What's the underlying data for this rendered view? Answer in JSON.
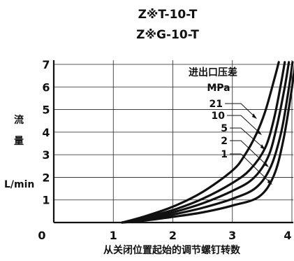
{
  "chart_data": {
    "type": "line",
    "title": "Z※T-10-T",
    "subtitle": "Z※G-10-T",
    "xlabel": "从关闭位置起始的调节螺钉转数",
    "ylabel_chars": [
      "流",
      "量"
    ],
    "ylabel_unit": "L/min",
    "xlim": [
      0,
      4
    ],
    "ylim": [
      0,
      7
    ],
    "x_ticks": [
      0,
      1,
      2,
      3,
      4
    ],
    "y_ticks": [
      1,
      2,
      3,
      4,
      5,
      6,
      7
    ],
    "x_tick_labels": [
      "0",
      "1",
      "2",
      "3",
      "4"
    ],
    "y_tick_labels": [
      "1",
      "2",
      "3",
      "4",
      "5",
      "6",
      "7"
    ],
    "grid": true,
    "legend_title": "进出口压差",
    "legend_unit": "MPa",
    "series": [
      {
        "name": "21",
        "points": [
          [
            1.15,
            0
          ],
          [
            1.5,
            0.25
          ],
          [
            2,
            0.7
          ],
          [
            2.5,
            1.35
          ],
          [
            3,
            2.3
          ],
          [
            3.2,
            2.95
          ],
          [
            3.4,
            3.9
          ],
          [
            3.55,
            4.9
          ],
          [
            3.7,
            6.3
          ],
          [
            3.78,
            7.1
          ]
        ]
      },
      {
        "name": "10",
        "points": [
          [
            1.15,
            0
          ],
          [
            1.5,
            0.2
          ],
          [
            2,
            0.55
          ],
          [
            2.5,
            1.05
          ],
          [
            3,
            1.75
          ],
          [
            3.3,
            2.35
          ],
          [
            3.55,
            3.3
          ],
          [
            3.7,
            4.6
          ],
          [
            3.82,
            6.2
          ],
          [
            3.88,
            7.1
          ]
        ]
      },
      {
        "name": "5",
        "points": [
          [
            1.15,
            0
          ],
          [
            1.5,
            0.15
          ],
          [
            2,
            0.45
          ],
          [
            2.5,
            0.85
          ],
          [
            3,
            1.4
          ],
          [
            3.35,
            1.95
          ],
          [
            3.6,
            2.9
          ],
          [
            3.75,
            4.3
          ],
          [
            3.88,
            6.0
          ],
          [
            3.95,
            7.1
          ]
        ]
      },
      {
        "name": "2",
        "points": [
          [
            1.15,
            0
          ],
          [
            1.5,
            0.1
          ],
          [
            2,
            0.35
          ],
          [
            2.5,
            0.65
          ],
          [
            3,
            1.05
          ],
          [
            3.4,
            1.55
          ],
          [
            3.65,
            2.5
          ],
          [
            3.82,
            4.0
          ],
          [
            3.94,
            5.8
          ],
          [
            4.01,
            7.1
          ]
        ]
      },
      {
        "name": "1",
        "points": [
          [
            1.15,
            0
          ],
          [
            1.5,
            0.08
          ],
          [
            2,
            0.25
          ],
          [
            2.5,
            0.45
          ],
          [
            3,
            0.75
          ],
          [
            3.45,
            1.15
          ],
          [
            3.7,
            2.1
          ],
          [
            3.86,
            3.7
          ],
          [
            3.98,
            5.6
          ],
          [
            4.06,
            7.1
          ]
        ]
      }
    ]
  }
}
